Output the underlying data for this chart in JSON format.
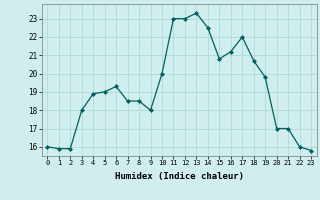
{
  "x": [
    0,
    1,
    2,
    3,
    4,
    5,
    6,
    7,
    8,
    9,
    10,
    11,
    12,
    13,
    14,
    15,
    16,
    17,
    18,
    19,
    20,
    21,
    22,
    23
  ],
  "y": [
    16,
    15.9,
    15.9,
    18,
    18.9,
    19,
    19.3,
    18.5,
    18.5,
    18,
    20,
    23,
    23,
    23.3,
    22.5,
    20.8,
    21.2,
    22,
    20.7,
    19.8,
    17,
    17,
    16,
    15.8
  ],
  "line_color": "#006060",
  "marker_color": "#006060",
  "bg_color": "#d0eeee",
  "grid_color": "#b0d8d8",
  "xlabel": "Humidex (Indice chaleur)",
  "xlim": [
    -0.5,
    23.5
  ],
  "ylim": [
    15.5,
    23.8
  ],
  "yticks": [
    16,
    17,
    18,
    19,
    20,
    21,
    22,
    23
  ],
  "xticks": [
    0,
    1,
    2,
    3,
    4,
    5,
    6,
    7,
    8,
    9,
    10,
    11,
    12,
    13,
    14,
    15,
    16,
    17,
    18,
    19,
    20,
    21,
    22,
    23
  ]
}
